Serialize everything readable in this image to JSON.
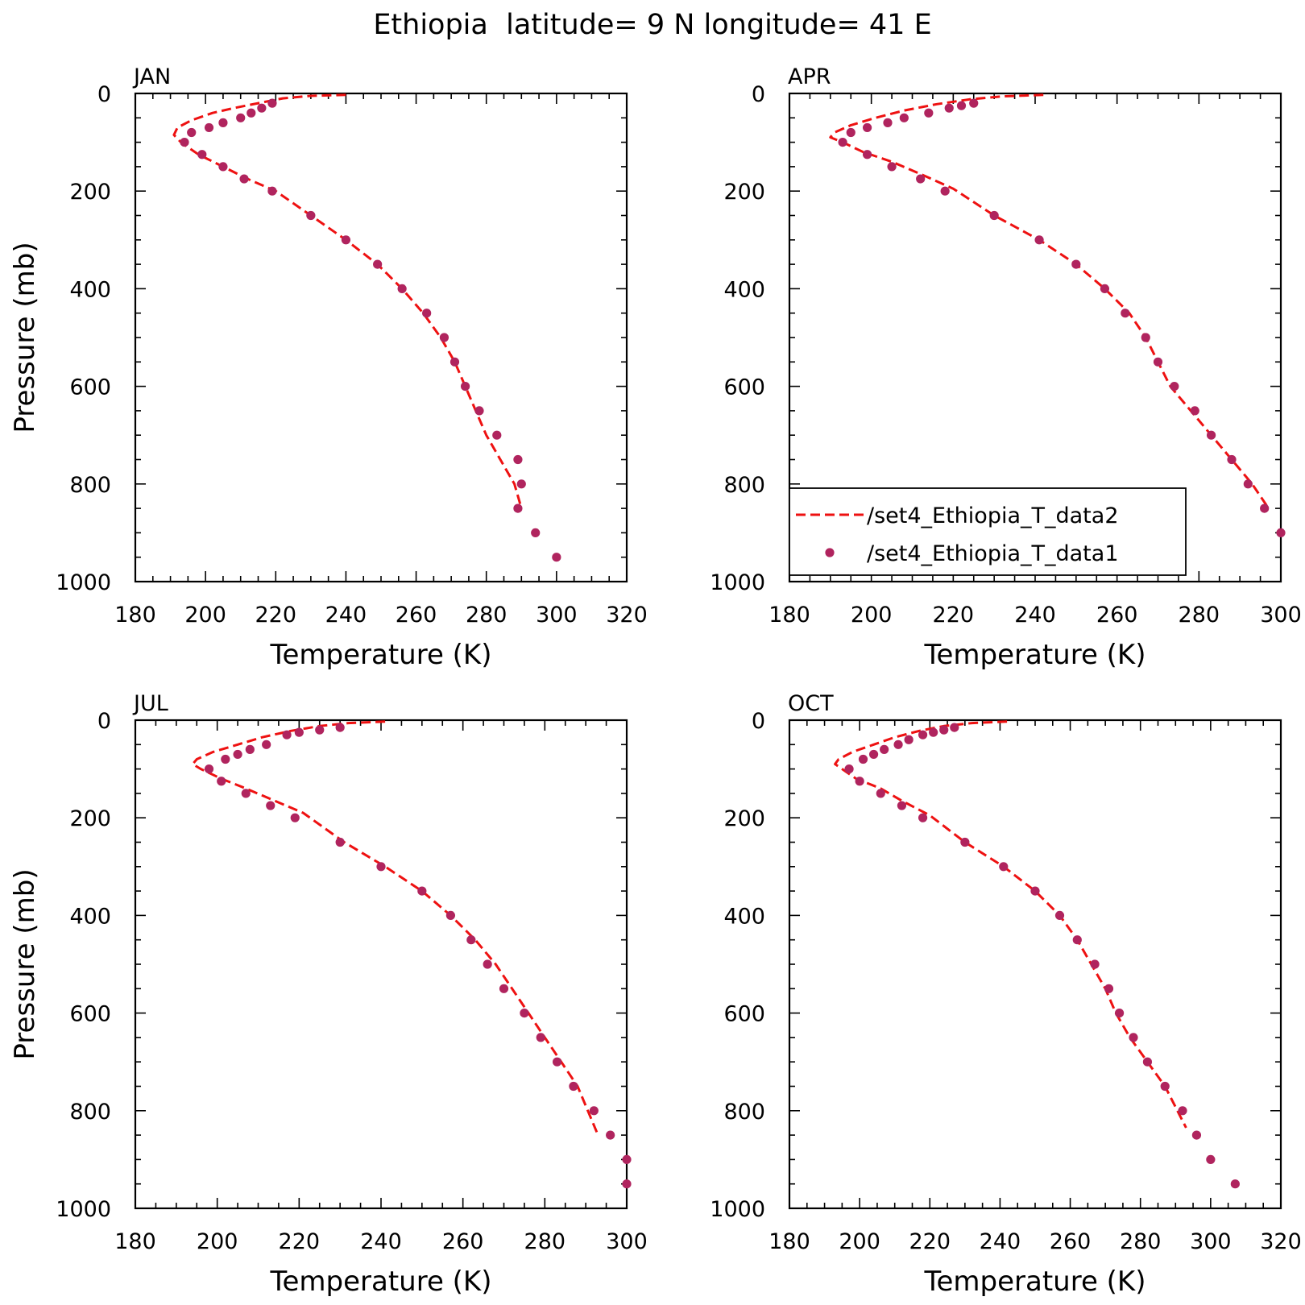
{
  "title": "Ethiopia  latitude= 9 N longitude= 41 E",
  "colors": {
    "line": "#ee1111",
    "marker": "#b0245e"
  },
  "legend": {
    "line_label": "/set4_Ethiopia_T_data2",
    "marker_label": "/set4_Ethiopia_T_data1"
  },
  "chart_data": [
    {
      "type": "line",
      "panel_label": "JAN",
      "xlabel": "Temperature (K)",
      "ylabel": "Pressure (mb)",
      "xlim": [
        180,
        320
      ],
      "ylim": [
        1000,
        0
      ],
      "xticks": [
        180,
        200,
        220,
        240,
        260,
        280,
        300,
        320
      ],
      "yticks": [
        0,
        200,
        400,
        600,
        800,
        1000
      ],
      "legend": false,
      "series": [
        {
          "name": "/set4_Ethiopia_T_data2",
          "style": "dashed",
          "x": [
            240,
            230,
            222,
            215,
            208,
            202,
            196,
            192,
            191,
            193,
            198,
            205,
            212,
            220,
            230,
            240,
            249,
            256,
            262,
            267,
            271,
            274,
            277,
            280,
            284,
            288,
            290
          ],
          "y": [
            3,
            5,
            10,
            20,
            30,
            40,
            55,
            70,
            85,
            100,
            125,
            150,
            175,
            200,
            250,
            300,
            350,
            400,
            450,
            500,
            550,
            600,
            650,
            700,
            750,
            800,
            850
          ]
        },
        {
          "name": "/set4_Ethiopia_T_data1",
          "style": "markers",
          "x": [
            219,
            216,
            213,
            210,
            205,
            201,
            196,
            194,
            199,
            205,
            211,
            219,
            230,
            240,
            249,
            256,
            263,
            268,
            271,
            274,
            278,
            283,
            289,
            290,
            289,
            294,
            300
          ],
          "y": [
            20,
            30,
            40,
            50,
            60,
            70,
            80,
            100,
            125,
            150,
            175,
            200,
            250,
            300,
            350,
            400,
            450,
            500,
            550,
            600,
            650,
            700,
            750,
            800,
            850,
            900,
            950
          ]
        }
      ]
    },
    {
      "type": "line",
      "panel_label": "APR",
      "xlabel": "Temperature (K)",
      "ylabel": "",
      "xlim": [
        180,
        300
      ],
      "ylim": [
        1000,
        0
      ],
      "xticks": [
        180,
        200,
        220,
        240,
        260,
        280,
        300
      ],
      "yticks": [
        0,
        200,
        400,
        600,
        800,
        1000
      ],
      "legend": true,
      "legend_position": "bottom-right",
      "series": [
        {
          "name": "/set4_Ethiopia_T_data2",
          "style": "dashed",
          "x": [
            242,
            232,
            224,
            216,
            208,
            201,
            195,
            191,
            190,
            193,
            198,
            205,
            212,
            220,
            230,
            241,
            250,
            257,
            263,
            267,
            270,
            273,
            278,
            283,
            288,
            293,
            297
          ],
          "y": [
            3,
            6,
            12,
            22,
            35,
            50,
            65,
            80,
            90,
            100,
            120,
            140,
            165,
            195,
            250,
            300,
            350,
            400,
            450,
            500,
            550,
            600,
            650,
            700,
            750,
            800,
            850
          ]
        },
        {
          "name": "/set4_Ethiopia_T_data1",
          "style": "markers",
          "x": [
            225,
            222,
            219,
            214,
            208,
            204,
            199,
            195,
            193,
            199,
            205,
            212,
            218,
            230,
            241,
            250,
            257,
            262,
            267,
            270,
            274,
            279,
            283,
            288,
            292,
            296,
            300
          ],
          "y": [
            20,
            25,
            30,
            40,
            50,
            60,
            70,
            80,
            100,
            125,
            150,
            175,
            200,
            250,
            300,
            350,
            400,
            450,
            500,
            550,
            600,
            650,
            700,
            750,
            800,
            850,
            900
          ]
        }
      ]
    },
    {
      "type": "line",
      "panel_label": "JUL",
      "xlabel": "Temperature (K)",
      "ylabel": "Pressure (mb)",
      "xlim": [
        180,
        300
      ],
      "ylim": [
        1000,
        0
      ],
      "xticks": [
        180,
        200,
        220,
        240,
        260,
        280,
        300
      ],
      "yticks": [
        0,
        200,
        400,
        600,
        800,
        1000
      ],
      "legend": false,
      "series": [
        {
          "name": "/set4_Ethiopia_T_data2",
          "style": "dashed",
          "x": [
            241,
            232,
            225,
            218,
            211,
            205,
            199,
            195,
            194,
            196,
            201,
            207,
            214,
            221,
            231,
            241,
            250,
            257,
            263,
            268,
            272,
            276,
            280,
            284,
            288,
            293
          ],
          "y": [
            3,
            6,
            12,
            22,
            35,
            50,
            65,
            80,
            90,
            100,
            120,
            140,
            165,
            190,
            250,
            300,
            350,
            400,
            450,
            500,
            550,
            600,
            650,
            700,
            750,
            850
          ]
        },
        {
          "name": "/set4_Ethiopia_T_data1",
          "style": "markers",
          "x": [
            230,
            225,
            220,
            217,
            212,
            208,
            205,
            202,
            198,
            201,
            207,
            213,
            219,
            230,
            240,
            250,
            257,
            262,
            266,
            270,
            275,
            279,
            283,
            287,
            292,
            296,
            300,
            300
          ],
          "y": [
            15,
            20,
            25,
            30,
            50,
            60,
            70,
            80,
            100,
            125,
            150,
            175,
            200,
            250,
            300,
            350,
            400,
            450,
            500,
            550,
            600,
            650,
            700,
            750,
            800,
            850,
            900,
            950
          ]
        }
      ]
    },
    {
      "type": "line",
      "panel_label": "OCT",
      "xlabel": "Temperature (K)",
      "ylabel": "",
      "xlim": [
        180,
        320
      ],
      "ylim": [
        1000,
        0
      ],
      "xticks": [
        180,
        200,
        220,
        240,
        260,
        280,
        300,
        320
      ],
      "yticks": [
        0,
        200,
        400,
        600,
        800,
        1000
      ],
      "legend": false,
      "series": [
        {
          "name": "/set4_Ethiopia_T_data2",
          "style": "dashed",
          "x": [
            242,
            232,
            224,
            217,
            210,
            204,
            198,
            194,
            193,
            195,
            199,
            206,
            212,
            220,
            230,
            241,
            250,
            257,
            262,
            266,
            270,
            273,
            277,
            282,
            287,
            293
          ],
          "y": [
            3,
            6,
            12,
            22,
            35,
            50,
            65,
            80,
            90,
            100,
            120,
            140,
            165,
            195,
            250,
            300,
            350,
            400,
            450,
            500,
            550,
            600,
            650,
            700,
            750,
            835
          ]
        },
        {
          "name": "/set4_Ethiopia_T_data1",
          "style": "markers",
          "x": [
            227,
            224,
            221,
            218,
            214,
            211,
            207,
            204,
            201,
            197,
            200,
            206,
            212,
            218,
            230,
            241,
            250,
            257,
            262,
            267,
            271,
            274,
            278,
            282,
            287,
            292,
            296,
            300,
            307
          ],
          "y": [
            15,
            20,
            25,
            30,
            40,
            50,
            60,
            70,
            80,
            100,
            125,
            150,
            175,
            200,
            250,
            300,
            350,
            400,
            450,
            500,
            550,
            600,
            650,
            700,
            750,
            800,
            850,
            900,
            950
          ]
        }
      ]
    }
  ]
}
